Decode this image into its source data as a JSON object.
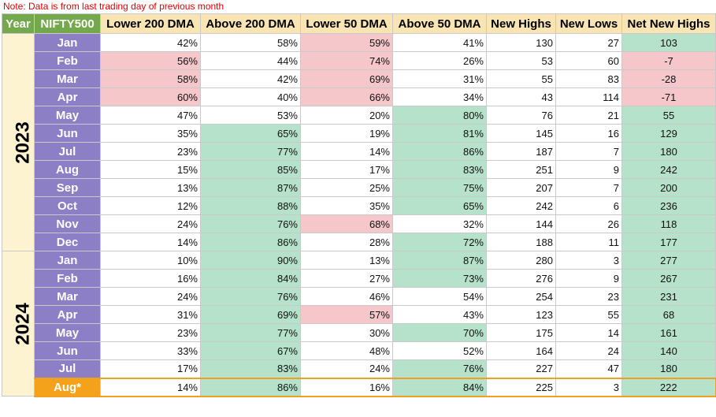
{
  "note": "Note: Data is from last trading day of previous month",
  "headers": {
    "year": "Year",
    "index": "NIFTY500",
    "lower200": "Lower 200 DMA",
    "above200": "Above 200 DMA",
    "lower50": "Lower 50 DMA",
    "above50": "Above 50 DMA",
    "highs": "New Highs",
    "lows": "New Lows",
    "net": "Net New Highs"
  },
  "colors": {
    "header_green": "#74a84c",
    "header_tan": "#f9e4b3",
    "month_purple": "#8c7fc6",
    "current_month_orange": "#f5a21b",
    "positive_fill": "#b6e1cb",
    "negative_fill": "#f5c6ca",
    "note_red": "#e00000"
  },
  "years": [
    {
      "year": "2023",
      "rows": [
        {
          "month": "Jan",
          "lower200": "42%",
          "above200": "58%",
          "lower50": "59%",
          "above50": "41%",
          "highs": "130",
          "lows": "27",
          "net": "103",
          "hl": {
            "lower200": "",
            "above200": "",
            "lower50": "red",
            "above50": "",
            "net": "green"
          }
        },
        {
          "month": "Feb",
          "lower200": "56%",
          "above200": "44%",
          "lower50": "74%",
          "above50": "26%",
          "highs": "53",
          "lows": "60",
          "net": "-7",
          "hl": {
            "lower200": "red",
            "above200": "",
            "lower50": "red",
            "above50": "",
            "net": "red"
          }
        },
        {
          "month": "Mar",
          "lower200": "58%",
          "above200": "42%",
          "lower50": "69%",
          "above50": "31%",
          "highs": "55",
          "lows": "83",
          "net": "-28",
          "hl": {
            "lower200": "red",
            "above200": "",
            "lower50": "red",
            "above50": "",
            "net": "red"
          }
        },
        {
          "month": "Apr",
          "lower200": "60%",
          "above200": "40%",
          "lower50": "66%",
          "above50": "34%",
          "highs": "43",
          "lows": "114",
          "net": "-71",
          "hl": {
            "lower200": "red",
            "above200": "",
            "lower50": "red",
            "above50": "",
            "net": "red"
          }
        },
        {
          "month": "May",
          "lower200": "47%",
          "above200": "53%",
          "lower50": "20%",
          "above50": "80%",
          "highs": "76",
          "lows": "21",
          "net": "55",
          "hl": {
            "lower200": "",
            "above200": "",
            "lower50": "",
            "above50": "green",
            "net": "green"
          }
        },
        {
          "month": "Jun",
          "lower200": "35%",
          "above200": "65%",
          "lower50": "19%",
          "above50": "81%",
          "highs": "145",
          "lows": "16",
          "net": "129",
          "hl": {
            "lower200": "",
            "above200": "green",
            "lower50": "",
            "above50": "green",
            "net": "green"
          }
        },
        {
          "month": "Jul",
          "lower200": "23%",
          "above200": "77%",
          "lower50": "14%",
          "above50": "86%",
          "highs": "187",
          "lows": "7",
          "net": "180",
          "hl": {
            "lower200": "",
            "above200": "green",
            "lower50": "",
            "above50": "green",
            "net": "green"
          }
        },
        {
          "month": "Aug",
          "lower200": "15%",
          "above200": "85%",
          "lower50": "17%",
          "above50": "83%",
          "highs": "251",
          "lows": "9",
          "net": "242",
          "hl": {
            "lower200": "",
            "above200": "green",
            "lower50": "",
            "above50": "green",
            "net": "green"
          }
        },
        {
          "month": "Sep",
          "lower200": "13%",
          "above200": "87%",
          "lower50": "25%",
          "above50": "75%",
          "highs": "207",
          "lows": "7",
          "net": "200",
          "hl": {
            "lower200": "",
            "above200": "green",
            "lower50": "",
            "above50": "green",
            "net": "green"
          }
        },
        {
          "month": "Oct",
          "lower200": "12%",
          "above200": "88%",
          "lower50": "35%",
          "above50": "65%",
          "highs": "242",
          "lows": "6",
          "net": "236",
          "hl": {
            "lower200": "",
            "above200": "green",
            "lower50": "",
            "above50": "green",
            "net": "green"
          }
        },
        {
          "month": "Nov",
          "lower200": "24%",
          "above200": "76%",
          "lower50": "68%",
          "above50": "32%",
          "highs": "144",
          "lows": "26",
          "net": "118",
          "hl": {
            "lower200": "",
            "above200": "green",
            "lower50": "red",
            "above50": "",
            "net": "green"
          }
        },
        {
          "month": "Dec",
          "lower200": "14%",
          "above200": "86%",
          "lower50": "28%",
          "above50": "72%",
          "highs": "188",
          "lows": "11",
          "net": "177",
          "hl": {
            "lower200": "",
            "above200": "green",
            "lower50": "",
            "above50": "green",
            "net": "green"
          }
        }
      ]
    },
    {
      "year": "2024",
      "rows": [
        {
          "month": "Jan",
          "lower200": "10%",
          "above200": "90%",
          "lower50": "13%",
          "above50": "87%",
          "highs": "280",
          "lows": "3",
          "net": "277",
          "hl": {
            "lower200": "",
            "above200": "green",
            "lower50": "",
            "above50": "green",
            "net": "green"
          }
        },
        {
          "month": "Feb",
          "lower200": "16%",
          "above200": "84%",
          "lower50": "27%",
          "above50": "73%",
          "highs": "276",
          "lows": "9",
          "net": "267",
          "hl": {
            "lower200": "",
            "above200": "green",
            "lower50": "",
            "above50": "green",
            "net": "green"
          }
        },
        {
          "month": "Mar",
          "lower200": "24%",
          "above200": "76%",
          "lower50": "46%",
          "above50": "54%",
          "highs": "254",
          "lows": "23",
          "net": "231",
          "hl": {
            "lower200": "",
            "above200": "green",
            "lower50": "",
            "above50": "",
            "net": "green"
          }
        },
        {
          "month": "Apr",
          "lower200": "31%",
          "above200": "69%",
          "lower50": "57%",
          "above50": "43%",
          "highs": "123",
          "lows": "55",
          "net": "68",
          "hl": {
            "lower200": "",
            "above200": "green",
            "lower50": "red",
            "above50": "",
            "net": "green"
          }
        },
        {
          "month": "May",
          "lower200": "23%",
          "above200": "77%",
          "lower50": "30%",
          "above50": "70%",
          "highs": "175",
          "lows": "14",
          "net": "161",
          "hl": {
            "lower200": "",
            "above200": "green",
            "lower50": "",
            "above50": "green",
            "net": "green"
          }
        },
        {
          "month": "Jun",
          "lower200": "33%",
          "above200": "67%",
          "lower50": "48%",
          "above50": "52%",
          "highs": "164",
          "lows": "24",
          "net": "140",
          "hl": {
            "lower200": "",
            "above200": "green",
            "lower50": "",
            "above50": "",
            "net": "green"
          }
        },
        {
          "month": "Jul",
          "lower200": "17%",
          "above200": "83%",
          "lower50": "24%",
          "above50": "76%",
          "highs": "227",
          "lows": "47",
          "net": "180",
          "hl": {
            "lower200": "",
            "above200": "green",
            "lower50": "",
            "above50": "green",
            "net": "green"
          }
        },
        {
          "month": "Aug*",
          "current": true,
          "lower200": "14%",
          "above200": "86%",
          "lower50": "16%",
          "above50": "84%",
          "highs": "225",
          "lows": "3",
          "net": "222",
          "hl": {
            "lower200": "",
            "above200": "green",
            "lower50": "",
            "above50": "green",
            "net": "green"
          }
        }
      ]
    }
  ]
}
